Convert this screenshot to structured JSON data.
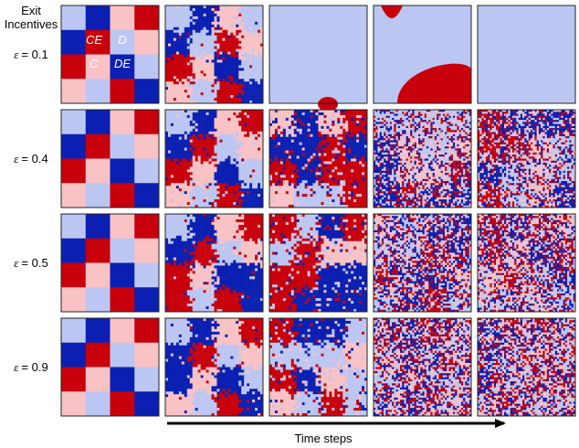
{
  "header": {
    "line1": "Exit",
    "line2": "Incentives"
  },
  "rows": [
    {
      "symbol": "ε",
      "value": "= 0.1"
    },
    {
      "symbol": "ε",
      "value": "= 0.4"
    },
    {
      "symbol": "ε",
      "value": "= 0.5"
    },
    {
      "symbol": "ε",
      "value": "= 0.9"
    }
  ],
  "strategy_labels": {
    "top_left": "CE",
    "top_right": "D",
    "bottom_left": "C",
    "bottom_right": "DE"
  },
  "xaxis_label": "Time steps",
  "colors": {
    "CE": "#c8000c",
    "C": "#f9c2c5",
    "D": "#bcc6f2",
    "DE": "#0b20b2",
    "background": "#ffffff",
    "frame": "#222222"
  },
  "initial_pattern": [
    [
      "D",
      "DE",
      "C",
      "CE"
    ],
    [
      "DE",
      "CE",
      "D",
      "C"
    ],
    [
      "CE",
      "C",
      "DE",
      "D"
    ],
    [
      "C",
      "D",
      "CE",
      "DE"
    ]
  ],
  "panel_descriptions": [
    [
      "initial checkerboard",
      "patchy mixed",
      "uniform D",
      "D with large CE patches",
      "uniform D"
    ],
    [
      "initial checkerboard",
      "patchy mixed",
      "coarse mixture",
      "fine C/CE/D/DE noise",
      "fine C/CE/D/DE noise"
    ],
    [
      "initial checkerboard",
      "patchy mixed",
      "coarse mixture",
      "fine C/CE/D/DE noise",
      "fine C/CE/D/DE noise"
    ],
    [
      "initial checkerboard",
      "patchy mixed",
      "coarse mixture",
      "fine C/CE/D/DE noise",
      "fine C/CE/D/DE noise"
    ]
  ]
}
